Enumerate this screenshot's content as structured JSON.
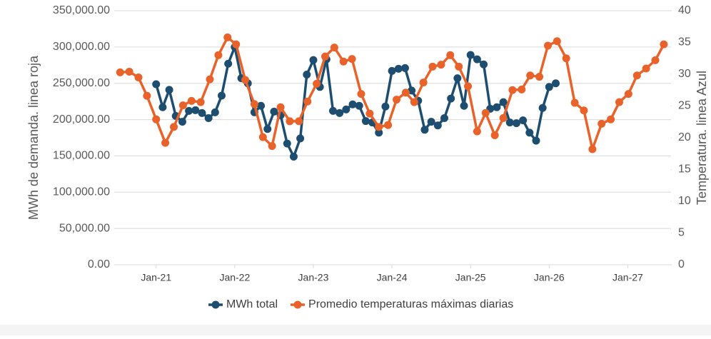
{
  "chart_data": {
    "type": "line",
    "ylabel": "MWh de demanda. linea roja",
    "y2label": "Temperatura. linea Azul",
    "ylim": [
      0,
      350000
    ],
    "yticks": [
      {
        "value": 0,
        "label": "0.00"
      },
      {
        "value": 50000,
        "label": "50,000.00"
      },
      {
        "value": 100000,
        "label": "100,000.00"
      },
      {
        "value": 150000,
        "label": "150,000.00"
      },
      {
        "value": 200000,
        "label": "200,000.00"
      },
      {
        "value": 250000,
        "label": "250,000.00"
      },
      {
        "value": 300000,
        "label": "300,000.00"
      },
      {
        "value": 350000,
        "label": "350,000.00"
      }
    ],
    "y2lim": [
      0,
      40
    ],
    "y2ticks": [
      0,
      5,
      10,
      15,
      20,
      25,
      30,
      35,
      40
    ],
    "xlim": [
      -6.4,
      78.6
    ],
    "xticks": [
      {
        "value": 0,
        "label": "Jan-21"
      },
      {
        "value": 12,
        "label": "Jan-22"
      },
      {
        "value": 24,
        "label": "Jan-23"
      },
      {
        "value": 36,
        "label": "Jan-24"
      },
      {
        "value": 48,
        "label": "Jan-25"
      },
      {
        "value": 60,
        "label": "Jan-26"
      },
      {
        "value": 72,
        "label": "Jan-27"
      }
    ],
    "grid": true,
    "legend": "bottom",
    "series": [
      {
        "name": "MWh total",
        "color": "#1d4e6f",
        "x": [
          0,
          1,
          2,
          3,
          4,
          5,
          6,
          7,
          8,
          9,
          10,
          11,
          12,
          13,
          14,
          15,
          16,
          17,
          18,
          19,
          20,
          21,
          22,
          23,
          24,
          25,
          26,
          27,
          28,
          29,
          30,
          31,
          32,
          33,
          34,
          35,
          36,
          37,
          38,
          39,
          40,
          41,
          42,
          43,
          44,
          45,
          46,
          47,
          48,
          49,
          50,
          51,
          52,
          53,
          54,
          55,
          56,
          57,
          58,
          59,
          60,
          61
        ],
        "values": [
          248700,
          217000,
          241000,
          205000,
          197000,
          212000,
          213000,
          209000,
          202000,
          210000,
          233000,
          277000,
          300000,
          257000,
          250000,
          210000,
          219000,
          187000,
          211000,
          206000,
          167000,
          149000,
          174000,
          262000,
          282000,
          245000,
          283000,
          212000,
          209000,
          214000,
          221000,
          219000,
          198000,
          196000,
          182000,
          218000,
          267000,
          270000,
          271000,
          240000,
          226000,
          186000,
          197000,
          192000,
          202000,
          229000,
          257000,
          219000,
          289000,
          283000,
          276000,
          215000,
          217000,
          224000,
          196000,
          195000,
          199000,
          182000,
          171000,
          216000,
          245000,
          250000
        ]
      },
      {
        "name": "Promedio temperaturas máximas diarias",
        "color": "#e8622a",
        "axis": "y2",
        "x": [
          -5.5,
          -4.1,
          -2.7,
          -1.4,
          0.0,
          1.4,
          2.7,
          4.1,
          5.4,
          6.8,
          8.2,
          9.5,
          10.9,
          12.2,
          13.6,
          15.0,
          16.3,
          17.7,
          19.0,
          20.4,
          21.8,
          23.1,
          24.5,
          25.8,
          27.2,
          28.6,
          29.9,
          31.3,
          32.6,
          34.0,
          35.4,
          36.7,
          38.1,
          39.4,
          40.8,
          42.2,
          43.5,
          44.9,
          46.2,
          47.6,
          49.0,
          50.3,
          51.7,
          53.0,
          54.4,
          55.8,
          57.1,
          58.5,
          59.8,
          61.2,
          62.6,
          63.9,
          65.3,
          66.6,
          68.0,
          69.4,
          70.7,
          72.1,
          73.4,
          74.8,
          76.2,
          77.5
        ],
        "values": [
          30.3,
          30.4,
          29.5,
          26.6,
          22.9,
          19.2,
          21.7,
          25.1,
          25.8,
          25.6,
          29.2,
          33.0,
          35.8,
          34.7,
          29.1,
          25.3,
          20.1,
          18.7,
          24.8,
          22.6,
          22.6,
          25.7,
          28.5,
          32.8,
          34.2,
          32.0,
          32.4,
          26.9,
          23.8,
          21.7,
          22.0,
          26.0,
          27.1,
          25.6,
          28.7,
          31.2,
          31.5,
          33.0,
          31.2,
          28.1,
          21.0,
          23.9,
          20.4,
          23.1,
          27.5,
          27.6,
          29.8,
          29.6,
          34.5,
          35.2,
          32.5,
          25.5,
          24.3,
          18.2,
          22.2,
          22.9,
          25.6,
          26.9,
          29.8,
          30.9,
          32.2,
          34.7
        ]
      }
    ]
  }
}
